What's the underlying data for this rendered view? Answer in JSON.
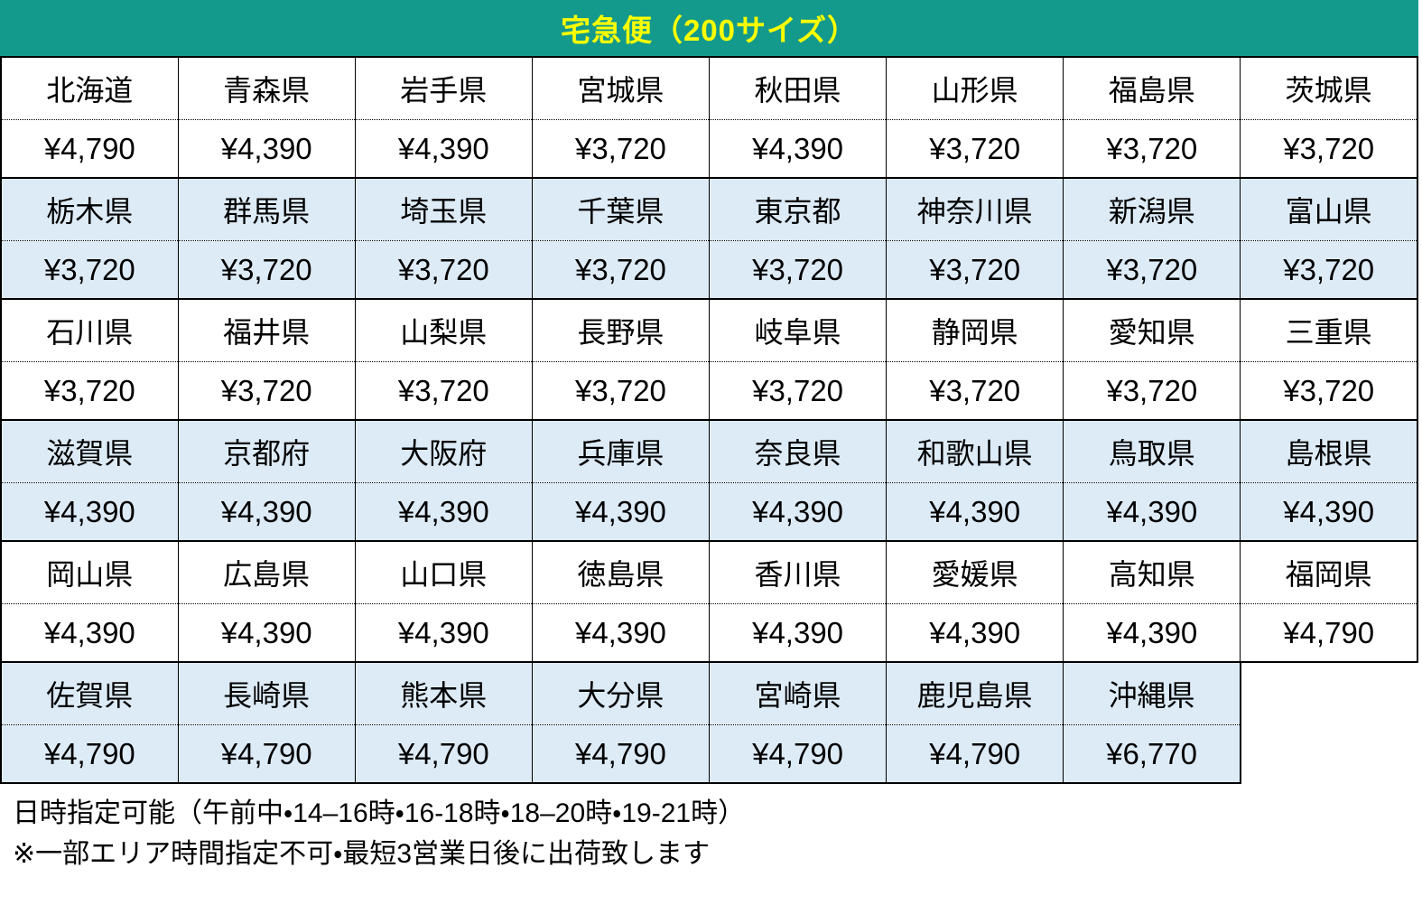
{
  "header": {
    "title": "宅急便（200サイズ）"
  },
  "colors": {
    "header_bg": "#149A8C",
    "header_text": "#FFFF00",
    "shaded_row_bg": "#DDEBF7",
    "border": "#000000"
  },
  "table": {
    "rows": [
      {
        "shaded": false,
        "cells": [
          {
            "prefecture": "北海道",
            "price": "¥4,790"
          },
          {
            "prefecture": "青森県",
            "price": "¥4,390"
          },
          {
            "prefecture": "岩手県",
            "price": "¥4,390"
          },
          {
            "prefecture": "宮城県",
            "price": "¥3,720"
          },
          {
            "prefecture": "秋田県",
            "price": "¥4,390"
          },
          {
            "prefecture": "山形県",
            "price": "¥3,720"
          },
          {
            "prefecture": "福島県",
            "price": "¥3,720"
          },
          {
            "prefecture": "茨城県",
            "price": "¥3,720"
          }
        ]
      },
      {
        "shaded": true,
        "cells": [
          {
            "prefecture": "栃木県",
            "price": "¥3,720"
          },
          {
            "prefecture": "群馬県",
            "price": "¥3,720"
          },
          {
            "prefecture": "埼玉県",
            "price": "¥3,720"
          },
          {
            "prefecture": "千葉県",
            "price": "¥3,720"
          },
          {
            "prefecture": "東京都",
            "price": "¥3,720"
          },
          {
            "prefecture": "神奈川県",
            "price": "¥3,720"
          },
          {
            "prefecture": "新潟県",
            "price": "¥3,720"
          },
          {
            "prefecture": "富山県",
            "price": "¥3,720"
          }
        ]
      },
      {
        "shaded": false,
        "cells": [
          {
            "prefecture": "石川県",
            "price": "¥3,720"
          },
          {
            "prefecture": "福井県",
            "price": "¥3,720"
          },
          {
            "prefecture": "山梨県",
            "price": "¥3,720"
          },
          {
            "prefecture": "長野県",
            "price": "¥3,720"
          },
          {
            "prefecture": "岐阜県",
            "price": "¥3,720"
          },
          {
            "prefecture": "静岡県",
            "price": "¥3,720"
          },
          {
            "prefecture": "愛知県",
            "price": "¥3,720"
          },
          {
            "prefecture": "三重県",
            "price": "¥3,720"
          }
        ]
      },
      {
        "shaded": true,
        "cells": [
          {
            "prefecture": "滋賀県",
            "price": "¥4,390"
          },
          {
            "prefecture": "京都府",
            "price": "¥4,390"
          },
          {
            "prefecture": "大阪府",
            "price": "¥4,390"
          },
          {
            "prefecture": "兵庫県",
            "price": "¥4,390"
          },
          {
            "prefecture": "奈良県",
            "price": "¥4,390"
          },
          {
            "prefecture": "和歌山県",
            "price": "¥4,390"
          },
          {
            "prefecture": "鳥取県",
            "price": "¥4,390"
          },
          {
            "prefecture": "島根県",
            "price": "¥4,390"
          }
        ]
      },
      {
        "shaded": false,
        "cells": [
          {
            "prefecture": "岡山県",
            "price": "¥4,390"
          },
          {
            "prefecture": "広島県",
            "price": "¥4,390"
          },
          {
            "prefecture": "山口県",
            "price": "¥4,390"
          },
          {
            "prefecture": "徳島県",
            "price": "¥4,390"
          },
          {
            "prefecture": "香川県",
            "price": "¥4,390"
          },
          {
            "prefecture": "愛媛県",
            "price": "¥4,390"
          },
          {
            "prefecture": "高知県",
            "price": "¥4,390"
          },
          {
            "prefecture": "福岡県",
            "price": "¥4,790"
          }
        ]
      },
      {
        "shaded": true,
        "cells": [
          {
            "prefecture": "佐賀県",
            "price": "¥4,790"
          },
          {
            "prefecture": "長崎県",
            "price": "¥4,790"
          },
          {
            "prefecture": "熊本県",
            "price": "¥4,790"
          },
          {
            "prefecture": "大分県",
            "price": "¥4,790"
          },
          {
            "prefecture": "宮崎県",
            "price": "¥4,790"
          },
          {
            "prefecture": "鹿児島県",
            "price": "¥4,790"
          },
          {
            "prefecture": "沖縄県",
            "price": "¥6,770"
          }
        ]
      }
    ]
  },
  "footer": {
    "line1": "日時指定可能（午前中・14–16時・16-18時・18–20時・19-21時）",
    "line2": "※一部エリア時間指定不可・最短3営業日後に出荷致します"
  }
}
